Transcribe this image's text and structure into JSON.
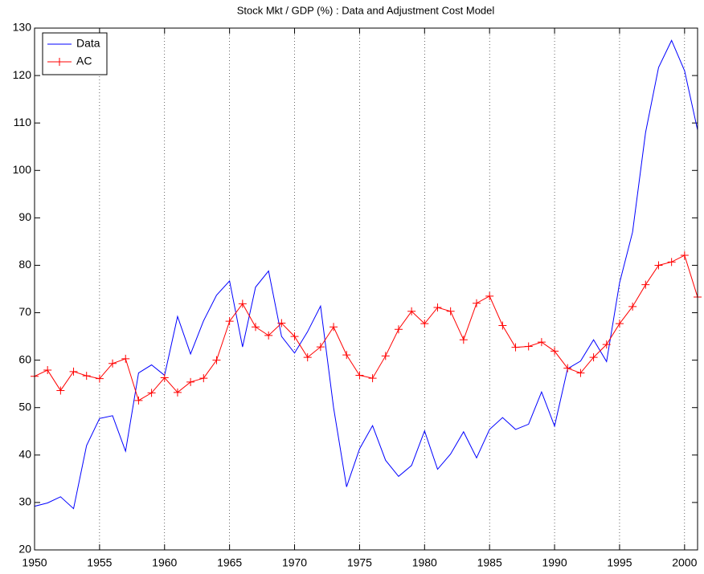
{
  "chart_data": {
    "type": "line",
    "title": "Stock Mkt / GDP (%) : Data and Adjustment Cost Model",
    "x": [
      1950,
      1951,
      1952,
      1953,
      1954,
      1955,
      1956,
      1957,
      1958,
      1959,
      1960,
      1961,
      1962,
      1963,
      1964,
      1965,
      1966,
      1967,
      1968,
      1969,
      1970,
      1971,
      1972,
      1973,
      1974,
      1975,
      1976,
      1977,
      1978,
      1979,
      1980,
      1981,
      1982,
      1983,
      1984,
      1985,
      1986,
      1987,
      1988,
      1989,
      1990,
      1991,
      1992,
      1993,
      1994,
      1995,
      1996,
      1997,
      1998,
      1999,
      2000,
      2001
    ],
    "series": [
      {
        "name": "Data",
        "color": "#0000ff",
        "marker": "none",
        "values": [
          29.2,
          29.9,
          31.2,
          28.7,
          42,
          47.7,
          48.3,
          40.8,
          57.3,
          59,
          56.8,
          69.2,
          61.3,
          68.3,
          73.7,
          76.7,
          62.8,
          75.4,
          78.8,
          65,
          61.5,
          66,
          71.4,
          50,
          33.3,
          41.3,
          46.2,
          38.9,
          35.5,
          37.8,
          45.1,
          37,
          40.2,
          44.9,
          39.4,
          45.4,
          47.9,
          45.4,
          46.5,
          53.3,
          46.1,
          58.2,
          59.8,
          64.3,
          59.7,
          76.3,
          87,
          108,
          121.7,
          127.4,
          121,
          108.5
        ]
      },
      {
        "name": "AC",
        "color": "#ff0000",
        "marker": "+",
        "values": [
          56.6,
          57.9,
          53.6,
          57.6,
          56.7,
          56.1,
          59.3,
          60.3,
          51.5,
          53.1,
          56.3,
          53.2,
          55.4,
          56.2,
          60,
          68.2,
          71.9,
          67,
          65.2,
          67.8,
          65,
          60.6,
          62.8,
          67,
          61.1,
          56.8,
          56.2,
          60.9,
          66.5,
          70.3,
          67.7,
          71.1,
          70.3,
          64.3,
          72,
          73.5,
          67.3,
          62.7,
          62.9,
          63.8,
          61.9,
          58.3,
          57.3,
          60.6,
          63.3,
          67.7,
          71.3,
          75.9,
          80,
          80.7,
          82.1,
          73.3
        ]
      }
    ],
    "xlim": [
      1950,
      2001
    ],
    "xticks": [
      1950,
      1955,
      1960,
      1965,
      1970,
      1975,
      1980,
      1985,
      1990,
      1995,
      2000
    ],
    "ylim": [
      20,
      130
    ],
    "yticks": [
      20,
      30,
      40,
      50,
      60,
      70,
      80,
      90,
      100,
      110,
      120,
      130
    ],
    "xgrid": true,
    "legend": "upper left"
  }
}
